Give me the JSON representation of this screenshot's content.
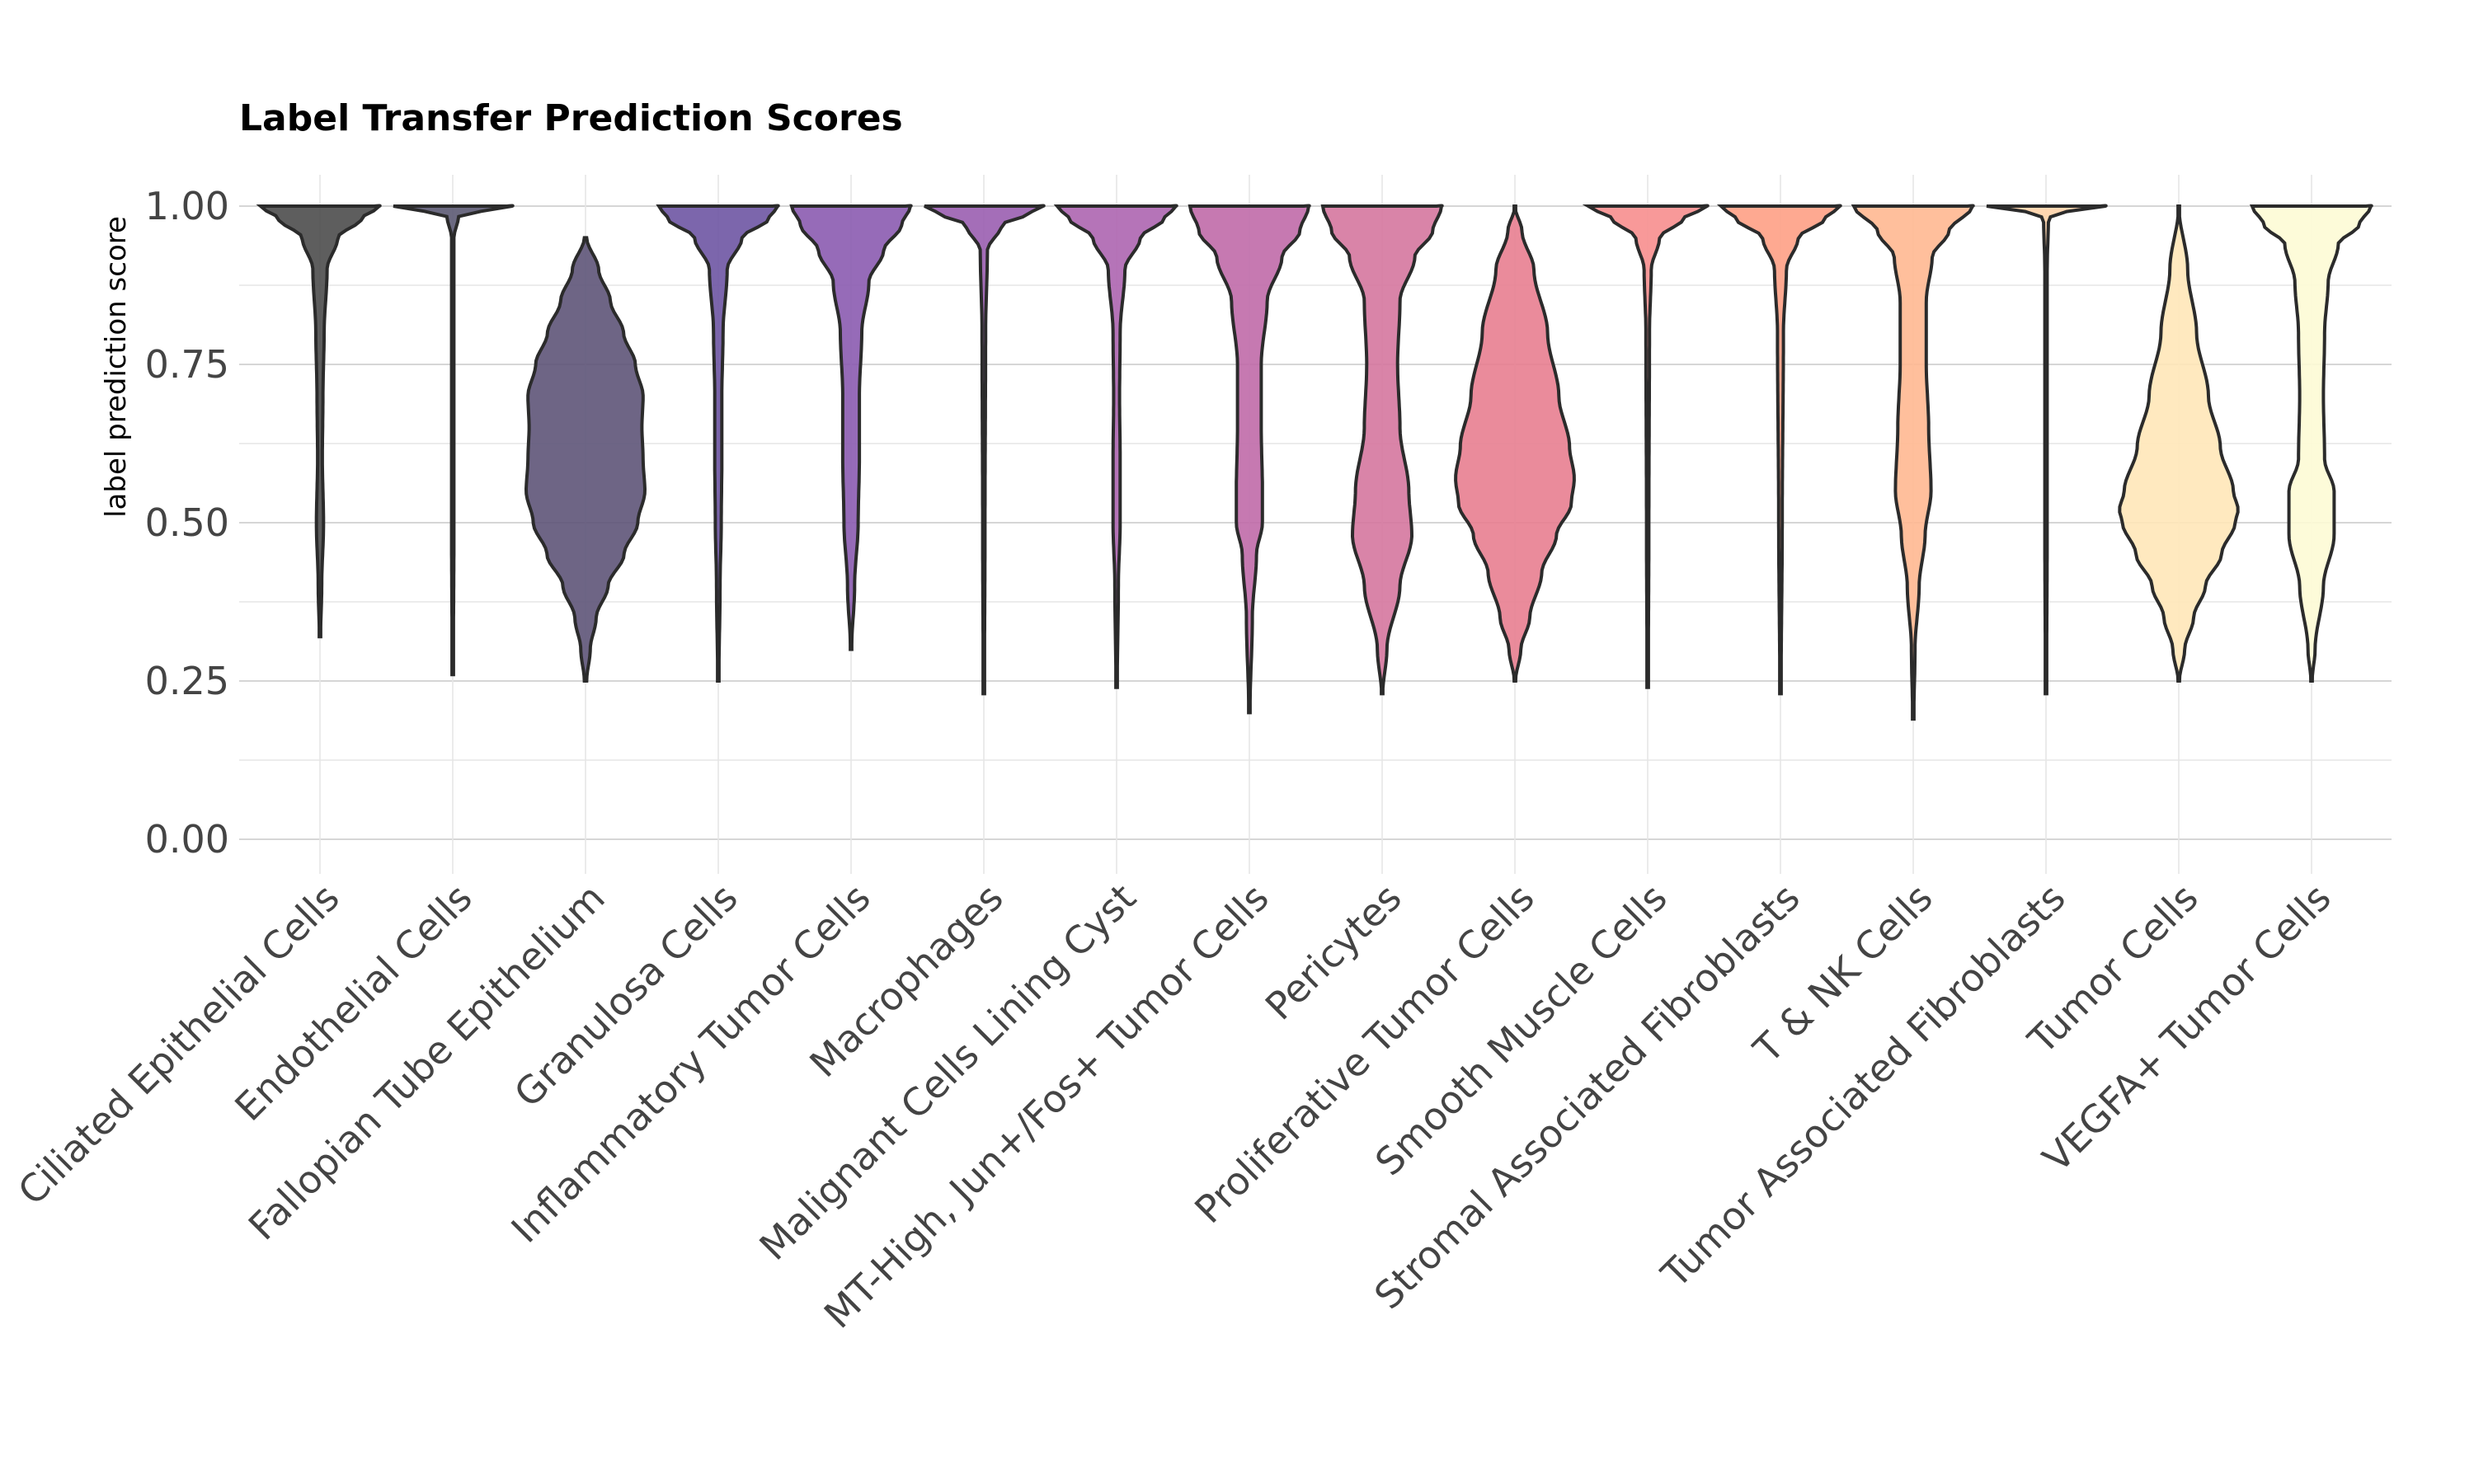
{
  "chart_data": {
    "type": "violin",
    "title": "Label Transfer Prediction Scores",
    "xlabel": "",
    "ylabel": "label prediction score",
    "ylim": [
      0,
      1
    ],
    "yticks": [
      "0.00",
      "0.25",
      "0.50",
      "0.75",
      "1.00"
    ],
    "grid": true,
    "categories": [
      "Ciliated Epithelial Cells",
      "Endothelial Cells",
      "Fallopian Tube Epithelium",
      "Granulosa Cells",
      "Inflammatory Tumor Cells",
      "Macrophages",
      "Malignant Cells Lining Cyst",
      "MT-High, Jun+/Fos+ Tumor Cells",
      "Pericytes",
      "Proliferative Tumor Cells",
      "Smooth Muscle Cells",
      "Stromal Associated Fibroblasts",
      "T & NK Cells",
      "Tumor Associated Fibroblasts",
      "Tumor Cells",
      "VEGFA+ Tumor Cells"
    ],
    "colors": [
      "#4d4d4d",
      "#5c5a73",
      "#5e5478",
      "#6e55a3",
      "#8b5bb0",
      "#9a5eb0",
      "#ad65b0",
      "#c06aa8",
      "#d5779f",
      "#e87e90",
      "#f78e8e",
      "#fea085",
      "#ffb891",
      "#ffd3a8",
      "#ffe7b8",
      "#fdfbd5"
    ],
    "series": [
      {
        "name": "Ciliated Epithelial Cells",
        "min": 0.32,
        "max": 1.0,
        "profile": [
          [
            0.32,
            0.01
          ],
          [
            0.4,
            0.03
          ],
          [
            0.5,
            0.06
          ],
          [
            0.6,
            0.04
          ],
          [
            0.7,
            0.05
          ],
          [
            0.8,
            0.07
          ],
          [
            0.9,
            0.12
          ],
          [
            0.95,
            0.3
          ],
          [
            0.98,
            0.7
          ],
          [
            1.0,
            1.0
          ]
        ]
      },
      {
        "name": "Endothelial Cells",
        "min": 0.26,
        "max": 1.0,
        "profile": [
          [
            0.26,
            0.01
          ],
          [
            0.5,
            0.02
          ],
          [
            0.8,
            0.02
          ],
          [
            0.95,
            0.02
          ],
          [
            0.985,
            0.1
          ],
          [
            0.995,
            0.6
          ],
          [
            1.0,
            1.0
          ]
        ]
      },
      {
        "name": "Fallopian Tube Epithelium",
        "min": 0.25,
        "max": 0.95,
        "profile": [
          [
            0.25,
            0.02
          ],
          [
            0.3,
            0.08
          ],
          [
            0.35,
            0.18
          ],
          [
            0.4,
            0.38
          ],
          [
            0.45,
            0.65
          ],
          [
            0.5,
            0.88
          ],
          [
            0.55,
            1.0
          ],
          [
            0.6,
            0.97
          ],
          [
            0.65,
            0.95
          ],
          [
            0.7,
            0.97
          ],
          [
            0.75,
            0.84
          ],
          [
            0.8,
            0.64
          ],
          [
            0.85,
            0.42
          ],
          [
            0.9,
            0.22
          ],
          [
            0.95,
            0.02
          ]
        ]
      },
      {
        "name": "Granulosa Cells",
        "min": 0.25,
        "max": 1.0,
        "profile": [
          [
            0.25,
            0.01
          ],
          [
            0.4,
            0.03
          ],
          [
            0.5,
            0.05
          ],
          [
            0.6,
            0.06
          ],
          [
            0.7,
            0.06
          ],
          [
            0.8,
            0.08
          ],
          [
            0.9,
            0.15
          ],
          [
            0.95,
            0.4
          ],
          [
            0.98,
            0.85
          ],
          [
            1.0,
            1.0
          ]
        ]
      },
      {
        "name": "Inflammatory Tumor Cells",
        "min": 0.3,
        "max": 1.0,
        "profile": [
          [
            0.3,
            0.01
          ],
          [
            0.4,
            0.06
          ],
          [
            0.5,
            0.12
          ],
          [
            0.6,
            0.14
          ],
          [
            0.7,
            0.14
          ],
          [
            0.8,
            0.18
          ],
          [
            0.88,
            0.3
          ],
          [
            0.93,
            0.55
          ],
          [
            0.97,
            0.85
          ],
          [
            1.0,
            1.0
          ]
        ]
      },
      {
        "name": "Macrophages",
        "min": 0.23,
        "max": 1.0,
        "profile": [
          [
            0.23,
            0.01
          ],
          [
            0.5,
            0.02
          ],
          [
            0.8,
            0.03
          ],
          [
            0.93,
            0.06
          ],
          [
            0.97,
            0.3
          ],
          [
            0.99,
            0.8
          ],
          [
            1.0,
            1.0
          ]
        ]
      },
      {
        "name": "Malignant Cells Lining Cyst",
        "min": 0.24,
        "max": 1.0,
        "profile": [
          [
            0.24,
            0.01
          ],
          [
            0.4,
            0.03
          ],
          [
            0.5,
            0.06
          ],
          [
            0.6,
            0.06
          ],
          [
            0.7,
            0.05
          ],
          [
            0.8,
            0.06
          ],
          [
            0.9,
            0.14
          ],
          [
            0.95,
            0.4
          ],
          [
            0.98,
            0.8
          ],
          [
            1.0,
            1.0
          ]
        ]
      },
      {
        "name": "MT-High, Jun+/Fos+ Tumor Cells",
        "min": 0.2,
        "max": 1.0,
        "profile": [
          [
            0.2,
            0.01
          ],
          [
            0.35,
            0.05
          ],
          [
            0.45,
            0.12
          ],
          [
            0.5,
            0.22
          ],
          [
            0.55,
            0.22
          ],
          [
            0.65,
            0.2
          ],
          [
            0.75,
            0.2
          ],
          [
            0.85,
            0.3
          ],
          [
            0.92,
            0.55
          ],
          [
            0.96,
            0.85
          ],
          [
            1.0,
            1.0
          ]
        ]
      },
      {
        "name": "Pericytes",
        "min": 0.23,
        "max": 1.0,
        "profile": [
          [
            0.23,
            0.01
          ],
          [
            0.3,
            0.08
          ],
          [
            0.4,
            0.3
          ],
          [
            0.48,
            0.5
          ],
          [
            0.55,
            0.45
          ],
          [
            0.65,
            0.3
          ],
          [
            0.75,
            0.26
          ],
          [
            0.85,
            0.3
          ],
          [
            0.92,
            0.55
          ],
          [
            0.96,
            0.85
          ],
          [
            1.0,
            1.0
          ]
        ]
      },
      {
        "name": "Proliferative Tumor Cells",
        "min": 0.25,
        "max": 1.0,
        "profile": [
          [
            0.25,
            0.01
          ],
          [
            0.3,
            0.1
          ],
          [
            0.35,
            0.25
          ],
          [
            0.42,
            0.45
          ],
          [
            0.48,
            0.7
          ],
          [
            0.53,
            0.95
          ],
          [
            0.57,
            1.0
          ],
          [
            0.62,
            0.92
          ],
          [
            0.7,
            0.74
          ],
          [
            0.8,
            0.55
          ],
          [
            0.9,
            0.32
          ],
          [
            0.96,
            0.12
          ],
          [
            1.0,
            0.0
          ]
        ]
      },
      {
        "name": "Smooth Muscle Cells",
        "min": 0.24,
        "max": 1.0,
        "profile": [
          [
            0.24,
            0.01
          ],
          [
            0.5,
            0.02
          ],
          [
            0.8,
            0.03
          ],
          [
            0.9,
            0.06
          ],
          [
            0.95,
            0.2
          ],
          [
            0.98,
            0.6
          ],
          [
            1.0,
            1.0
          ]
        ]
      },
      {
        "name": "Stromal Associated Fibroblasts",
        "min": 0.23,
        "max": 1.0,
        "profile": [
          [
            0.23,
            0.01
          ],
          [
            0.5,
            0.03
          ],
          [
            0.8,
            0.05
          ],
          [
            0.9,
            0.1
          ],
          [
            0.95,
            0.3
          ],
          [
            0.98,
            0.75
          ],
          [
            1.0,
            1.0
          ]
        ]
      },
      {
        "name": "T & NK Cells",
        "min": 0.19,
        "max": 1.0,
        "profile": [
          [
            0.19,
            0.01
          ],
          [
            0.3,
            0.03
          ],
          [
            0.4,
            0.1
          ],
          [
            0.48,
            0.2
          ],
          [
            0.55,
            0.3
          ],
          [
            0.65,
            0.26
          ],
          [
            0.75,
            0.22
          ],
          [
            0.85,
            0.22
          ],
          [
            0.92,
            0.32
          ],
          [
            0.96,
            0.6
          ],
          [
            1.0,
            1.0
          ]
        ]
      },
      {
        "name": "Tumor Associated Fibroblasts",
        "min": 0.23,
        "max": 1.0,
        "profile": [
          [
            0.23,
            0.01
          ],
          [
            0.5,
            0.02
          ],
          [
            0.9,
            0.02
          ],
          [
            0.98,
            0.04
          ],
          [
            0.995,
            0.4
          ],
          [
            1.0,
            1.0
          ]
        ]
      },
      {
        "name": "Tumor Cells",
        "min": 0.25,
        "max": 1.0,
        "profile": [
          [
            0.25,
            0.01
          ],
          [
            0.3,
            0.1
          ],
          [
            0.35,
            0.25
          ],
          [
            0.4,
            0.45
          ],
          [
            0.45,
            0.72
          ],
          [
            0.5,
            0.95
          ],
          [
            0.52,
            1.0
          ],
          [
            0.55,
            0.92
          ],
          [
            0.62,
            0.7
          ],
          [
            0.7,
            0.5
          ],
          [
            0.8,
            0.3
          ],
          [
            0.9,
            0.15
          ],
          [
            1.0,
            0.0
          ]
        ]
      },
      {
        "name": "VEGFA+ Tumor Cells",
        "min": 0.25,
        "max": 1.0,
        "profile": [
          [
            0.25,
            0.01
          ],
          [
            0.3,
            0.06
          ],
          [
            0.4,
            0.2
          ],
          [
            0.48,
            0.38
          ],
          [
            0.55,
            0.38
          ],
          [
            0.6,
            0.22
          ],
          [
            0.7,
            0.2
          ],
          [
            0.8,
            0.22
          ],
          [
            0.88,
            0.28
          ],
          [
            0.94,
            0.45
          ],
          [
            0.97,
            0.8
          ],
          [
            1.0,
            1.0
          ]
        ]
      }
    ]
  }
}
